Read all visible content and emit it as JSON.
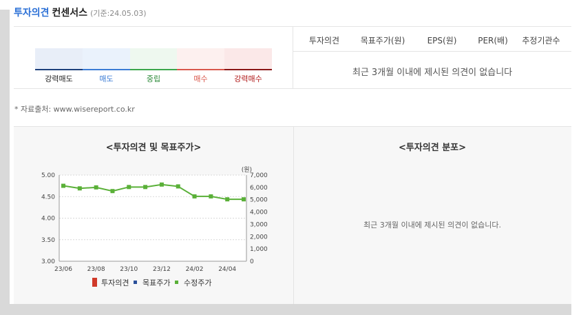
{
  "header": {
    "title_blue": "투자의견",
    "title_rest": "컨센서스",
    "date": "(기준:24.05.03)"
  },
  "scale": {
    "labels": [
      "강력매도",
      "매도",
      "중립",
      "매수",
      "강력매수"
    ],
    "fill_colors": [
      "#e8eef8",
      "#eaf2fc",
      "#eef8ef",
      "#fdf0ef",
      "#fbe8e8"
    ],
    "bar_colors": [
      "#1c3f7a",
      "#3a7bd5",
      "#3aa64a",
      "#d9564a",
      "#8a1515"
    ],
    "label_colors": [
      "#222222",
      "#3a7bd5",
      "#2e8b3a",
      "#d9564a",
      "#b01818"
    ]
  },
  "table": {
    "headers": [
      "투자의견",
      "목표주가(원)",
      "EPS(원)",
      "PER(배)",
      "추정기관수"
    ],
    "empty_message": "최근 3개월 이내에 제시된 의견이 없습니다"
  },
  "source": "* 자료출처: www.wisereport.co.kr",
  "chart_left": {
    "title": "<투자의견 및 목표주가>"
  },
  "chart_right": {
    "title": "<투자의견 분포>",
    "empty_message": "최근 3개월 이내에 제시된 의견이 없습니다."
  },
  "chart_data": {
    "type": "line",
    "x": [
      "23/06",
      "23/07",
      "23/08",
      "23/09",
      "23/10",
      "23/11",
      "23/12",
      "24/01",
      "24/02",
      "24/03",
      "24/04",
      "24/05"
    ],
    "x_tick_labels": [
      "23/06",
      "23/08",
      "23/10",
      "23/12",
      "24/02",
      "24/04"
    ],
    "y_left": {
      "ticks": [
        "5.00",
        "4.50",
        "4.00",
        "3.50",
        "3.00"
      ],
      "range": [
        3.0,
        5.0
      ]
    },
    "y_right": {
      "unit": "(원)",
      "ticks": [
        "7,000",
        "6,000",
        "5,000",
        "4,000",
        "3,000",
        "2,000",
        "1,000",
        "0"
      ],
      "range": [
        0,
        7000
      ]
    },
    "series": [
      {
        "name": "수정주가",
        "axis": "right",
        "color": "#5ab038",
        "values": [
          6130,
          5920,
          6000,
          5700,
          6030,
          6030,
          6230,
          6080,
          5270,
          5270,
          5030,
          5030
        ]
      }
    ],
    "legend": [
      {
        "name": "투자의견",
        "color": "#d03a2a",
        "marker": "bar"
      },
      {
        "name": "목표주가",
        "color": "#2a4f9a",
        "marker": "dot"
      },
      {
        "name": "수정주가",
        "color": "#5ab038",
        "marker": "dot"
      }
    ],
    "grid": true
  }
}
